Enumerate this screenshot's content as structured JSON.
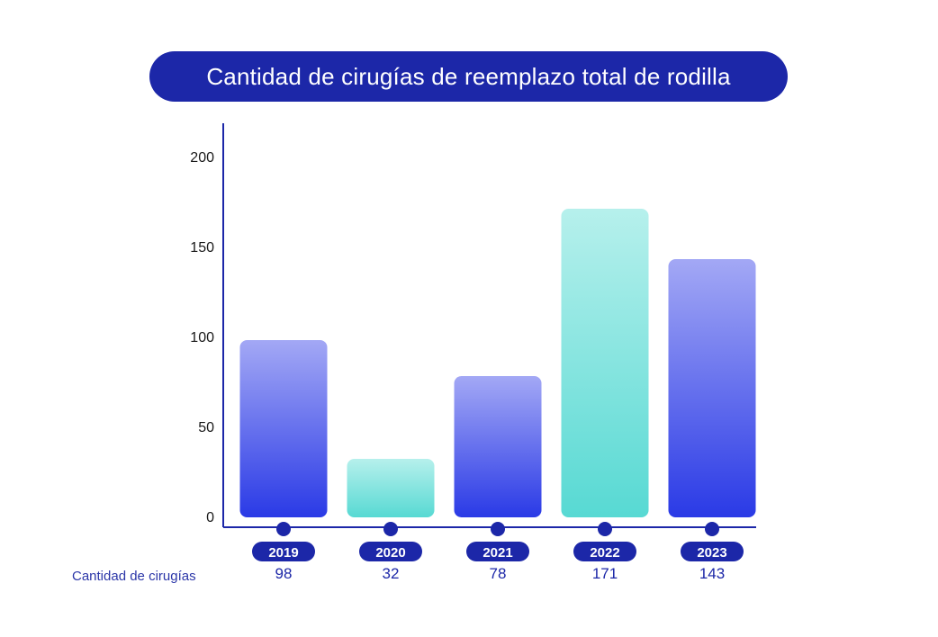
{
  "chart_data": {
    "type": "bar",
    "title": "Cantidad de cirugías de reemplazo total de rodilla",
    "categories": [
      "2019",
      "2020",
      "2021",
      "2022",
      "2023"
    ],
    "values": [
      98,
      32,
      78,
      171,
      143
    ],
    "value_labels": [
      "98",
      "32",
      "78",
      "171",
      "143"
    ],
    "row_label": "Cantidad de cirugías",
    "yticks": [
      0,
      50,
      100,
      150,
      200
    ],
    "ylim": [
      0,
      210
    ],
    "bar_styles": [
      "blue",
      "teal",
      "blue",
      "teal",
      "blue"
    ],
    "colors": {
      "title_bg": "#1c27a8",
      "axis": "#1c27a8",
      "blue_top": "#a3a8f5",
      "blue_bottom": "#2a3ae6",
      "teal_top": "#b6f0ec",
      "teal_bottom": "#57d9d3"
    }
  }
}
